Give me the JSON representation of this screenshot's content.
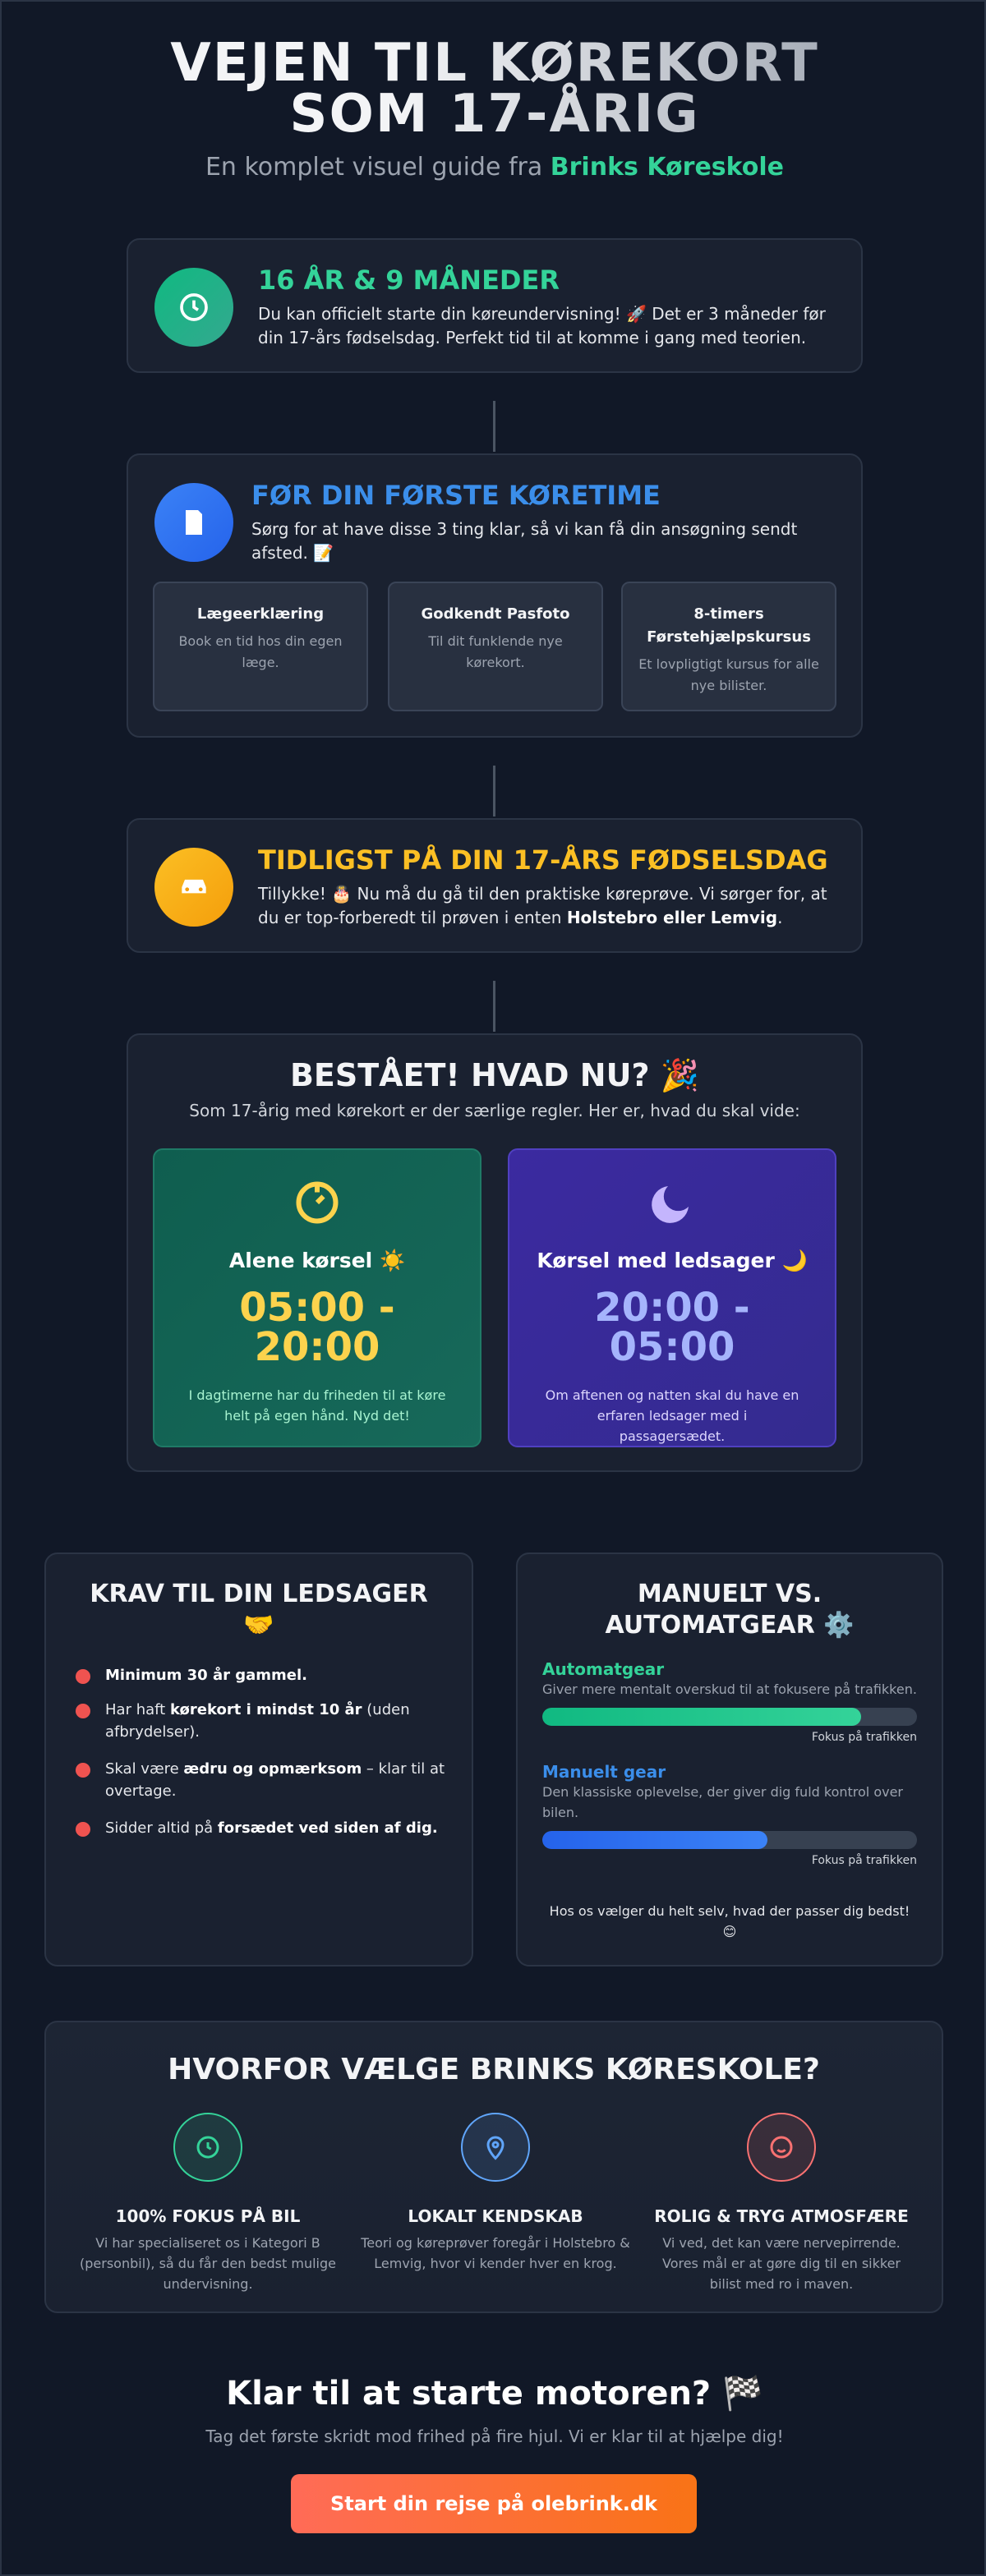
{
  "header": {
    "title": "VEJEN TIL KØREKORT SOM 17-ÅRIG",
    "subtitle": "En komplet visuel guide fra ",
    "brand": "Brinks Køreskole"
  },
  "steps": [
    {
      "title": "16 ÅR & 9 MÅNEDER",
      "text": [
        {
          "text": "Du kan officielt starte din køreundervisning! 🚀 Det er 3 måneder før din 17-års fødselsdag. Perfekt tid til at komme i gang med teorien."
        }
      ]
    },
    {
      "title": "FØR DIN FØRSTE KØRETIME",
      "text": [
        {
          "text": "Sørg for at have disse 3 ting klar, så vi kan få din ansøgning sendt afsted. 📝"
        }
      ],
      "items": [
        {
          "title": "Lægeerklæring",
          "text": "Book en tid hos din egen læge."
        },
        {
          "title": "Godkendt Pasfoto",
          "text": "Til dit funklende nye kørekort."
        },
        {
          "title": "8-timers Førstehjælpskursus",
          "text": "Et lovpligtigt kursus for alle nye bilister."
        }
      ]
    },
    {
      "title": "TIDLIGST PÅ DIN 17-ÅRS FØDSELSDAG",
      "text": [
        {
          "text": "Tillykke! 🎂 Nu må du gå til den praktiske køreprøve. Vi sørger for, at du er top-forberedt til prøven i enten "
        },
        {
          "text": "Holstebro eller Lemvig",
          "bold": true
        },
        {
          "text": "."
        }
      ]
    }
  ],
  "passed": {
    "title": "BESTÅET! HVAD NU? 🎉",
    "subtitle": "Som 17-årig med kørekort er der særlige regler. Her er, hvad du skal vide:",
    "cards": [
      {
        "title": "Alene kørsel ☀️",
        "time": "05:00 - 20:00",
        "text": "I dagtimerne har du friheden til at køre helt på egen hånd. Nyd det!"
      },
      {
        "title": "Kørsel med ledsager 🌙",
        "time": "20:00 - 05:00",
        "text": "Om aftenen og natten skal du have en erfaren ledsager med i passagersædet."
      }
    ]
  },
  "companion": {
    "title": "KRAV TIL DIN LEDSAGER 🤝",
    "items": [
      [
        {
          "text": "Minimum 30 år gammel.",
          "bold": true
        }
      ],
      [
        {
          "text": "Har haft "
        },
        {
          "text": "kørekort i mindst 10 år",
          "bold": true
        },
        {
          "text": " (uden afbrydelser)."
        }
      ],
      [
        {
          "text": "Skal være "
        },
        {
          "text": "ædru og opmærksom",
          "bold": true
        },
        {
          "text": " – klar til at overtage."
        }
      ],
      [
        {
          "text": "Sidder altid på "
        },
        {
          "text": "forsædet ved siden af dig.",
          "bold": true
        }
      ]
    ]
  },
  "gear": {
    "title": "MANUELT VS. AUTOMATGEAR ⚙️",
    "options": [
      {
        "name": "Automatgear",
        "text": "Giver mere mentalt overskud til at fokusere på trafikken.",
        "bar_label": "Fokus på trafikken",
        "value": 85
      },
      {
        "name": "Manuelt gear",
        "text": "Den klassiske oplevelse, der giver dig fuld kontrol over bilen.",
        "bar_label": "Fokus på trafikken",
        "value": 60
      }
    ],
    "note": "Hos os vælger du helt selv, hvad der passer dig bedst! 😊"
  },
  "why": {
    "title": "HVORFOR VÆLGE BRINKS KØRESKOLE?",
    "items": [
      {
        "title": "100% FOKUS PÅ BIL",
        "text": "Vi har specialiseret os i Kategori B (personbil), så du får den bedst mulige undervisning."
      },
      {
        "title": "LOKALT KENDSKAB",
        "text": "Teori og køreprøver foregår i Holstebro & Lemvig, hvor vi kender hver en krog."
      },
      {
        "title": "ROLIG & TRYG ATMOSFÆRE",
        "text": "Vi ved, det kan være nervepirrende. Vores mål er at gøre dig til en sikker bilist med ro i maven."
      }
    ]
  },
  "cta": {
    "title": "Klar til at starte motoren? 🏁",
    "subtitle": "Tag det første skridt mod frihed på fire hjul. Vi er klar til at hjælpe dig!",
    "button": "Start din rejse på olebrink.dk"
  }
}
